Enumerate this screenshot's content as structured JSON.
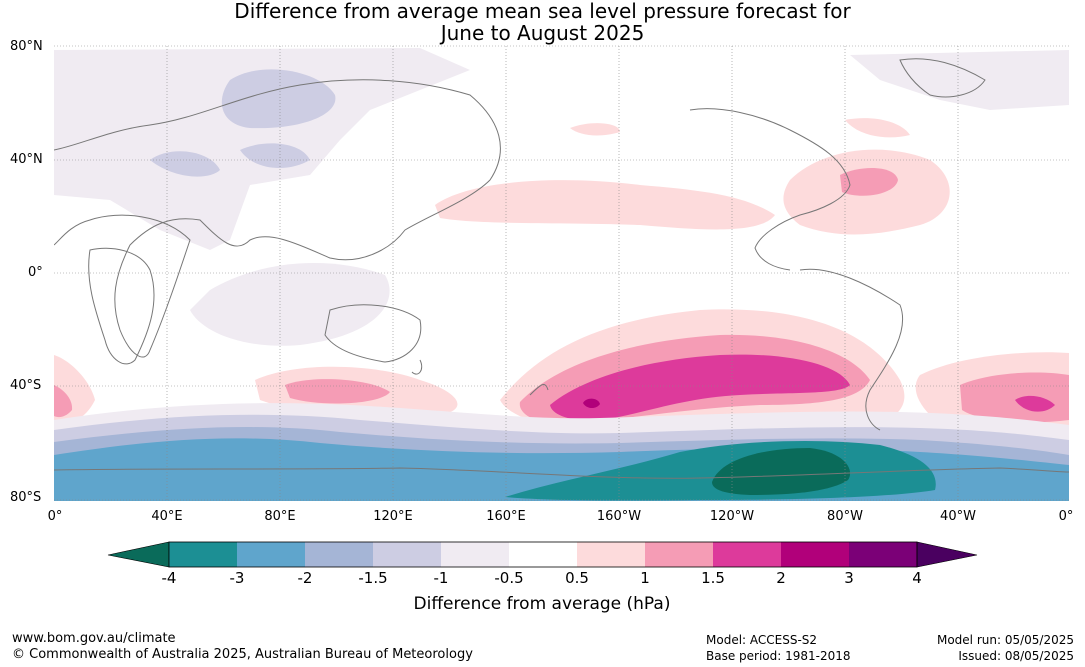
{
  "title": {
    "line1": "Difference from average mean sea level pressure forecast for",
    "line2": "June to August 2025"
  },
  "latitude_labels": [
    "80°N",
    "40°N",
    "0°",
    "40°S",
    "80°S"
  ],
  "longitude_labels": [
    "0°",
    "40°E",
    "80°E",
    "120°E",
    "160°E",
    "160°W",
    "120°W",
    "80°W",
    "40°W",
    "0°"
  ],
  "colorbar": {
    "ticks": [
      "-4",
      "-3",
      "-2",
      "-1.5",
      "-1",
      "-0.5",
      "0.5",
      "1",
      "1.5",
      "2",
      "3",
      "4"
    ],
    "label": "Difference from average (hPa)",
    "colors": {
      "below_min": "#0a6b5a",
      "bins": [
        "#1c8f94",
        "#5fa5cc",
        "#a5b5d6",
        "#cdcde3",
        "#f0ebf2",
        "#ffffff",
        "#fddbdc",
        "#f59cb5",
        "#dd3a9b",
        "#b1007a",
        "#7b0077"
      ],
      "above_max": "#4a0060"
    }
  },
  "footer": {
    "website": "www.bom.gov.au/climate",
    "copyright": "© Commonwealth of Australia 2025, Australian Bureau of Meteorology",
    "model": "Model: ACCESS-S2",
    "base_period": "Base period: 1981-2018",
    "model_run": "Model run: 05/05/2025",
    "issued": "Issued: 08/05/2025"
  }
}
